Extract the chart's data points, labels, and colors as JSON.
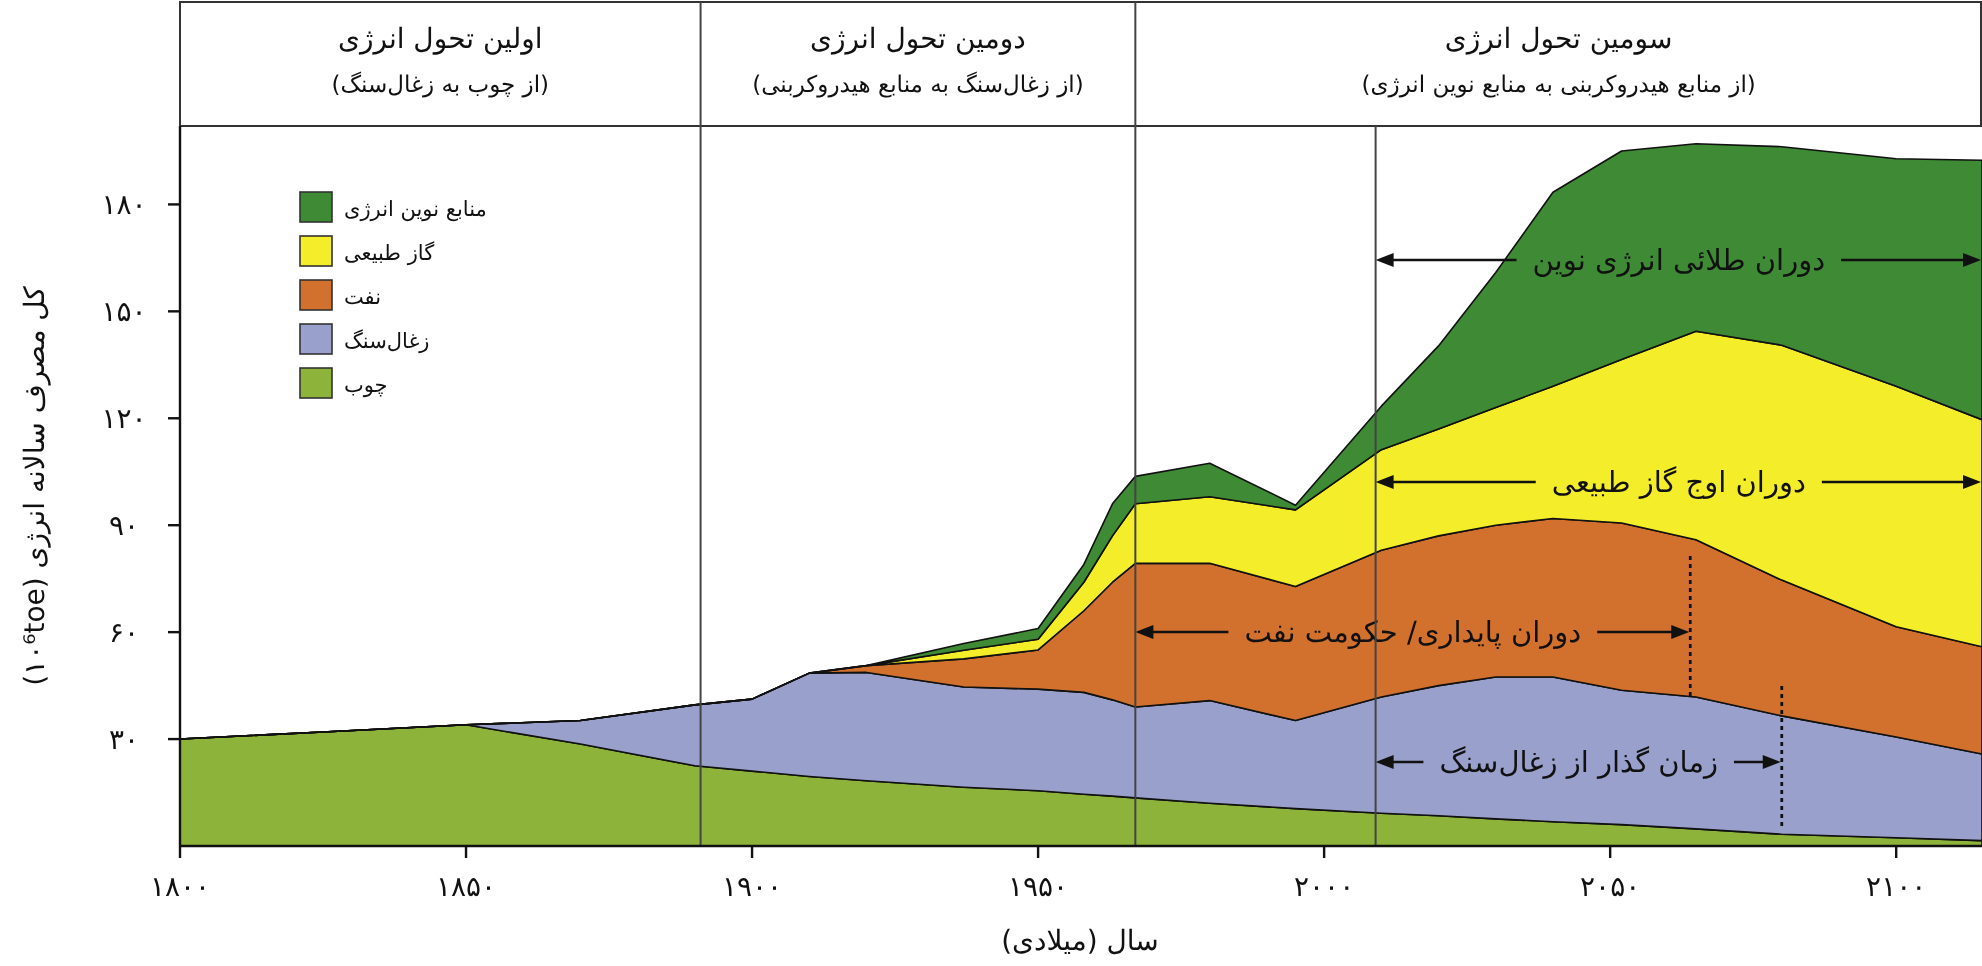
{
  "chart_data": {
    "type": "area",
    "stacked": true,
    "xlabel": "سال (میلادی)",
    "ylabel": "کل مصرف سالانه انرژی (۱۰⁶toe)",
    "x": [
      1800,
      1825,
      1850,
      1870,
      1890,
      1900,
      1910,
      1920,
      1937,
      1950,
      1958,
      1963,
      1967,
      1980,
      1995,
      2010,
      2020,
      2030,
      2040,
      2052,
      2065,
      2080,
      2100,
      2115
    ],
    "xlim": [
      1800,
      2115
    ],
    "ylim": [
      0,
      202
    ],
    "xticks": [
      {
        "value": 1800,
        "label": "۱۸۰۰"
      },
      {
        "value": 1850,
        "label": "۱۸۵۰"
      },
      {
        "value": 1900,
        "label": "۱۹۰۰"
      },
      {
        "value": 1950,
        "label": "۱۹۵۰"
      },
      {
        "value": 2000,
        "label": "۲۰۰۰"
      },
      {
        "value": 2050,
        "label": "۲۰۵۰"
      },
      {
        "value": 2100,
        "label": "۲۱۰۰"
      }
    ],
    "yticks": [
      {
        "value": 30,
        "label": "۳۰"
      },
      {
        "value": 60,
        "label": "۶۰"
      },
      {
        "value": 90,
        "label": "۹۰"
      },
      {
        "value": 120,
        "label": "۱۲۰"
      },
      {
        "value": 150,
        "label": "۱۵۰"
      },
      {
        "value": 180,
        "label": "۱۸۰"
      }
    ],
    "legend": "top left",
    "series": [
      {
        "name": "چوب",
        "color": "#8db33a",
        "values": [
          30,
          32,
          34,
          28.6,
          22.5,
          21,
          19.5,
          18.3,
          16.5,
          15.5,
          14.5,
          14,
          13.5,
          12,
          10.5,
          9.2,
          8.5,
          7.6,
          6.8,
          6,
          4.8,
          3.3,
          2.3,
          1.5
        ]
      },
      {
        "name": "زغال‌سنگ",
        "color": "#9aa0cc",
        "values": [
          0,
          0,
          0,
          6.6,
          17.1,
          20.2,
          29,
          30.4,
          28.1,
          28.5,
          28.6,
          27,
          25.5,
          28.8,
          24.7,
          32.6,
          36.5,
          39.8,
          40.6,
          37.7,
          37,
          33.2,
          28.3,
          24.3
        ]
      },
      {
        "name": "نفت",
        "color": "#d2712e",
        "values": [
          0,
          0,
          0,
          0,
          0,
          0,
          0,
          1.9,
          7.9,
          11,
          22.9,
          33,
          40.3,
          38.5,
          37.6,
          41.2,
          42,
          42.6,
          44.5,
          46.9,
          44.1,
          38.1,
          30.9,
          30.1
        ]
      },
      {
        "name": "گاز طبیعی",
        "color": "#f4ee2a",
        "values": [
          0,
          0,
          0,
          0,
          0,
          0,
          0,
          0,
          2.4,
          3,
          8,
          13,
          16.7,
          18.7,
          21.5,
          28.2,
          30,
          33,
          37.1,
          45.9,
          58.5,
          65.9,
          67.5,
          63.7
        ]
      },
      {
        "name": "منابع نوین انرژی",
        "color": "#3e8a35",
        "values": [
          0,
          0,
          0,
          0,
          0,
          0,
          0,
          0,
          1.9,
          3,
          5,
          9,
          7.7,
          9.4,
          1.3,
          12.2,
          23.3,
          37.9,
          54.4,
          58.5,
          52.6,
          55.7,
          63.8,
          72.8
        ]
      }
    ],
    "ref_lines": [
      {
        "axis": "x",
        "value": 1891
      },
      {
        "axis": "x",
        "value": 1967
      },
      {
        "axis": "x",
        "value": 2009
      },
      {
        "axis": "x",
        "value": 2064,
        "line_style": "dotted"
      },
      {
        "axis": "x",
        "value": 2080,
        "line_style": "dotted"
      }
    ],
    "annotations": [
      "اولین تحول انرژی",
      "(از چوب به زغال‌سنگ)",
      "دومین تحول انرژی",
      "(از زغال‌سنگ به منابع هیدروکربنی)",
      "سومین تحول انرژی",
      "(از منابع هیدروکربنی به منابع نوین انرژی)",
      "دوران طلائی انرژی نوین",
      "دوران اوج گاز طبیعی",
      "دوران پایداری/ حکومت نفت",
      "زمان گذار از زغال‌سنگ"
    ]
  }
}
